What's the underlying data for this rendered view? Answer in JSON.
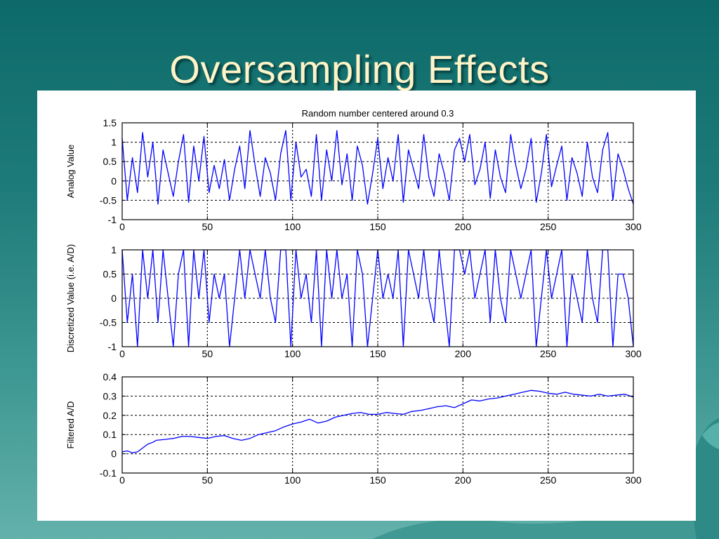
{
  "slide": {
    "title": "Oversampling Effects",
    "colors": {
      "background_top": "#0d6a6a",
      "background_bottom": "#63b1ab",
      "title_text": "#fff4c8",
      "line": "#0000ff"
    }
  },
  "chart_data": [
    {
      "type": "line",
      "title": "Random number centered around 0.3",
      "xlabel": "",
      "ylabel": "Analog Value",
      "xlim": [
        0,
        300
      ],
      "ylim": [
        -1,
        1.5
      ],
      "xticks": [
        "0",
        "50",
        "100",
        "150",
        "200",
        "250",
        "300"
      ],
      "yticks": [
        "-1",
        "-0.5",
        "0",
        "0.5",
        "1",
        "1.5"
      ],
      "grid": "dashed",
      "series": [
        {
          "color": "#0000ff",
          "x": [
            0,
            3,
            6,
            9,
            12,
            15,
            18,
            21,
            24,
            27,
            30,
            33,
            36,
            39,
            42,
            45,
            48,
            51,
            54,
            57,
            60,
            63,
            66,
            69,
            72,
            75,
            78,
            81,
            84,
            87,
            90,
            93,
            96,
            99,
            102,
            105,
            108,
            111,
            114,
            117,
            120,
            123,
            126,
            129,
            132,
            135,
            138,
            141,
            144,
            147,
            150,
            153,
            156,
            159,
            162,
            165,
            168,
            171,
            174,
            177,
            180,
            183,
            186,
            189,
            192,
            195,
            198,
            201,
            204,
            207,
            210,
            213,
            216,
            219,
            222,
            225,
            228,
            231,
            234,
            237,
            240,
            243,
            246,
            249,
            252,
            255,
            258,
            261,
            264,
            267,
            270,
            273,
            276,
            279,
            282,
            285,
            288,
            291,
            294,
            297,
            300
          ],
          "values": [
            1.1,
            -0.5,
            0.6,
            -0.3,
            1.25,
            0.1,
            1.0,
            -0.6,
            0.8,
            0.2,
            -0.4,
            0.5,
            1.2,
            -0.55,
            0.9,
            0.0,
            1.15,
            -0.3,
            0.4,
            -0.2,
            0.55,
            -0.5,
            0.3,
            0.9,
            -0.2,
            1.3,
            0.4,
            -0.4,
            0.6,
            0.2,
            -0.5,
            0.7,
            1.3,
            -0.5,
            1.0,
            0.1,
            0.3,
            -0.4,
            1.2,
            -0.5,
            0.8,
            0.0,
            1.3,
            -0.1,
            0.7,
            -0.5,
            0.9,
            0.4,
            -0.6,
            0.2,
            1.1,
            -0.2,
            0.6,
            0.0,
            1.2,
            -0.55,
            0.8,
            0.3,
            -0.2,
            1.2,
            0.1,
            -0.4,
            0.7,
            0.2,
            -0.5,
            0.8,
            1.1,
            0.5,
            1.2,
            -0.1,
            0.3,
            1.0,
            -0.45,
            0.8,
            0.1,
            -0.3,
            1.2,
            0.4,
            -0.2,
            0.3,
            1.1,
            -0.55,
            0.2,
            1.2,
            -0.15,
            0.4,
            0.9,
            -0.5,
            0.6,
            0.2,
            -0.4,
            1.0,
            0.1,
            -0.3,
            0.8,
            1.25,
            -0.5,
            0.7,
            0.3,
            -0.2,
            -0.6
          ]
        }
      ]
    },
    {
      "type": "line",
      "title": "",
      "xlabel": "",
      "ylabel": "Discretized Value (i.e. A/D)",
      "xlim": [
        0,
        300
      ],
      "ylim": [
        -1,
        1
      ],
      "xticks": [
        "0",
        "50",
        "100",
        "150",
        "200",
        "250",
        "300"
      ],
      "yticks": [
        "-1",
        "-0.5",
        "0",
        "0.5",
        "1"
      ],
      "grid": "dashed",
      "series": [
        {
          "color": "#0000ff",
          "x": [
            0,
            3,
            6,
            9,
            12,
            15,
            18,
            21,
            24,
            27,
            30,
            33,
            36,
            39,
            42,
            45,
            48,
            51,
            54,
            57,
            60,
            63,
            66,
            69,
            72,
            75,
            78,
            81,
            84,
            87,
            90,
            93,
            96,
            99,
            102,
            105,
            108,
            111,
            114,
            117,
            120,
            123,
            126,
            129,
            132,
            135,
            138,
            141,
            144,
            147,
            150,
            153,
            156,
            159,
            162,
            165,
            168,
            171,
            174,
            177,
            180,
            183,
            186,
            189,
            192,
            195,
            198,
            201,
            204,
            207,
            210,
            213,
            216,
            219,
            222,
            225,
            228,
            231,
            234,
            237,
            240,
            243,
            246,
            249,
            252,
            255,
            258,
            261,
            264,
            267,
            270,
            273,
            276,
            279,
            282,
            285,
            288,
            291,
            294,
            297,
            300
          ],
          "values": [
            1,
            -0.5,
            0.5,
            -1,
            1,
            0,
            1,
            -0.5,
            1,
            0,
            -1,
            0.5,
            1,
            -1,
            1,
            0,
            1,
            -0.5,
            0.5,
            0,
            0.5,
            -1,
            0,
            1,
            0,
            1,
            0.5,
            0,
            1,
            0,
            -0.5,
            1,
            1,
            -1,
            1,
            0,
            0.5,
            -0.5,
            1,
            -1,
            1,
            0,
            1,
            0,
            0.5,
            -1,
            1,
            0.5,
            -1,
            0,
            1,
            0,
            0.5,
            0,
            1,
            -1,
            1,
            0.5,
            0,
            1,
            0,
            -0.5,
            1,
            0,
            -1,
            1,
            1,
            0.5,
            1,
            0,
            0.5,
            1,
            -0.5,
            1,
            0,
            -0.5,
            1,
            0.5,
            0,
            0.5,
            1,
            -1,
            0,
            1,
            0,
            0.5,
            1,
            -1,
            0.5,
            0,
            -0.5,
            1,
            0,
            -0.5,
            1,
            1,
            -1,
            0.5,
            0.5,
            0,
            -1
          ]
        }
      ]
    },
    {
      "type": "line",
      "title": "",
      "xlabel": "",
      "ylabel": "Filtered A/D",
      "xlim": [
        0,
        300
      ],
      "ylim": [
        -0.1,
        0.4
      ],
      "xticks": [
        "0",
        "50",
        "100",
        "150",
        "200",
        "250",
        "300"
      ],
      "yticks": [
        "-0.1",
        "0",
        "0.1",
        "0.2",
        "0.3",
        "0.4"
      ],
      "grid": "dashed",
      "series": [
        {
          "color": "#0000ff",
          "x": [
            0,
            3,
            6,
            9,
            12,
            15,
            18,
            20,
            25,
            30,
            35,
            40,
            45,
            50,
            55,
            60,
            65,
            70,
            75,
            80,
            85,
            90,
            95,
            100,
            105,
            110,
            115,
            120,
            125,
            130,
            135,
            140,
            145,
            150,
            155,
            160,
            165,
            170,
            175,
            180,
            185,
            190,
            195,
            200,
            205,
            210,
            215,
            220,
            225,
            230,
            235,
            240,
            245,
            250,
            255,
            260,
            265,
            270,
            275,
            280,
            285,
            290,
            295,
            300
          ],
          "values": [
            0.01,
            0.015,
            0.005,
            0.01,
            0.03,
            0.05,
            0.06,
            0.07,
            0.075,
            0.08,
            0.09,
            0.09,
            0.085,
            0.08,
            0.09,
            0.095,
            0.08,
            0.07,
            0.08,
            0.1,
            0.11,
            0.12,
            0.14,
            0.155,
            0.165,
            0.18,
            0.16,
            0.17,
            0.19,
            0.2,
            0.21,
            0.215,
            0.205,
            0.205,
            0.215,
            0.21,
            0.205,
            0.22,
            0.225,
            0.235,
            0.245,
            0.25,
            0.24,
            0.26,
            0.28,
            0.275,
            0.285,
            0.29,
            0.3,
            0.31,
            0.32,
            0.33,
            0.325,
            0.315,
            0.31,
            0.32,
            0.31,
            0.305,
            0.3,
            0.31,
            0.3,
            0.305,
            0.31,
            0.295
          ]
        }
      ]
    }
  ]
}
